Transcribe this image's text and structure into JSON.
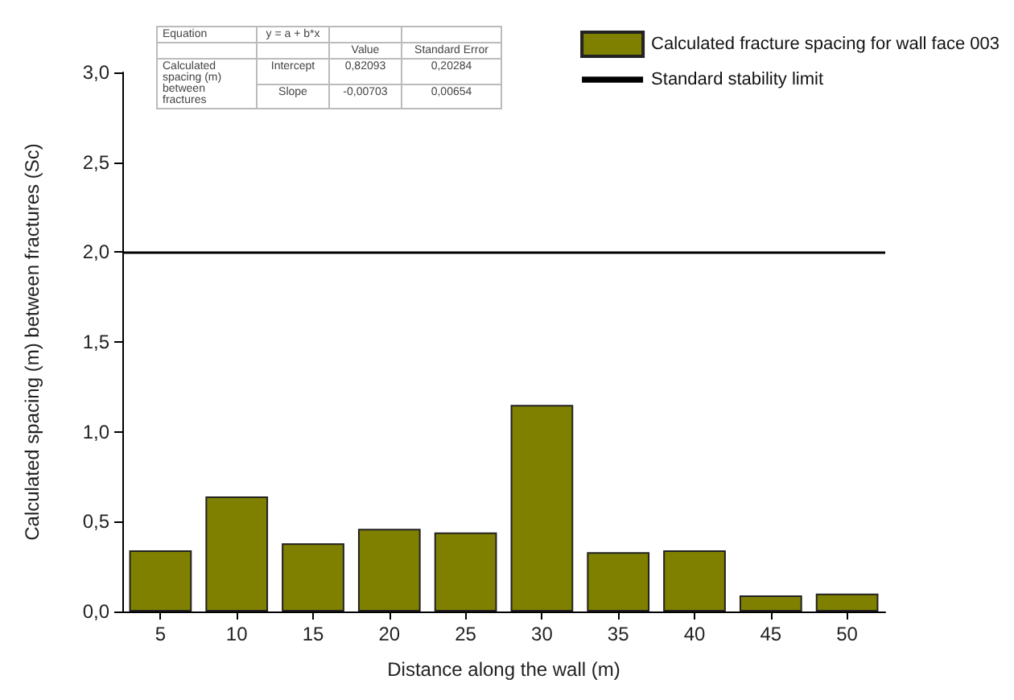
{
  "chart_data": {
    "type": "bar",
    "xlabel": "Distance along the wall (m)",
    "ylabel": "Calculated spacing (m) between fractures (Sc)",
    "categories": [
      "5",
      "10",
      "15",
      "20",
      "25",
      "30",
      "35",
      "40",
      "45",
      "50"
    ],
    "series": [
      {
        "name": "Calculated fracture spacing for wall face 003",
        "color": "#808000",
        "values": [
          0.34,
          0.64,
          0.38,
          0.46,
          0.44,
          1.15,
          0.33,
          0.34,
          0.09,
          0.1
        ]
      }
    ],
    "ylim": [
      0,
      3
    ],
    "yticks": [
      {
        "value": 0,
        "label": "0,0"
      },
      {
        "value": 0.5,
        "label": "0,5"
      },
      {
        "value": 1,
        "label": "1,0"
      },
      {
        "value": 1.5,
        "label": "1,5"
      },
      {
        "value": 2,
        "label": "2,0"
      },
      {
        "value": 2.5,
        "label": "2,5"
      },
      {
        "value": 3,
        "label": "3,0"
      }
    ],
    "ref_lines": [
      {
        "axis": "y",
        "value": 2,
        "label": "Standard stability limit",
        "color": "#000000"
      }
    ],
    "annotations": [
      "Equation",
      "y = a + b*x",
      "Value",
      "Standard Error",
      "Calculated spacing (m) between fractures",
      "Intercept",
      "0,82093",
      "0,20284",
      "Slope",
      "-0,00703",
      "0,00654"
    ],
    "grid": false,
    "legend": "top right"
  }
}
